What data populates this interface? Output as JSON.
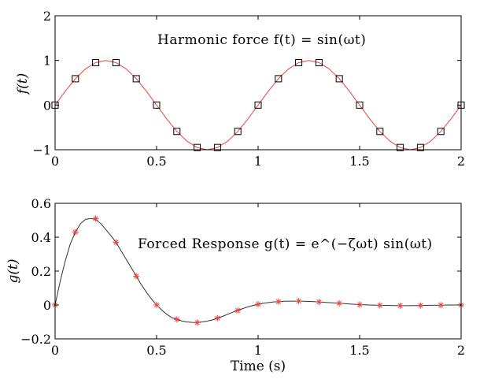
{
  "chart_data": [
    {
      "type": "line",
      "annotation": "Harmonic force f(t) = sin(ωt)",
      "ylabel": "f(t)",
      "xlabel": "",
      "xlim": [
        0,
        2
      ],
      "ylim": [
        -1,
        2
      ],
      "xticks": [
        0,
        0.5,
        1,
        1.5,
        2
      ],
      "xtick_labels": [
        "0",
        "0.5",
        "1",
        "1.5",
        "2"
      ],
      "yticks": [
        -1,
        0,
        1,
        2
      ],
      "ytick_labels": [
        "−1",
        "0",
        "1",
        "2"
      ],
      "grid": false,
      "series": [
        {
          "style": "line",
          "color": "#e8453c",
          "x": [
            0,
            0.05,
            0.1,
            0.15,
            0.2,
            0.25,
            0.3,
            0.35,
            0.4,
            0.45,
            0.5,
            0.55,
            0.6,
            0.65,
            0.7,
            0.75,
            0.8,
            0.85,
            0.9,
            0.95,
            1.0,
            1.05,
            1.1,
            1.15,
            1.2,
            1.25,
            1.3,
            1.35,
            1.4,
            1.45,
            1.5,
            1.55,
            1.6,
            1.65,
            1.7,
            1.75,
            1.8,
            1.85,
            1.9,
            1.95,
            2.0
          ],
          "y": [
            0,
            0.31,
            0.59,
            0.81,
            0.95,
            1.0,
            0.95,
            0.81,
            0.59,
            0.31,
            0,
            -0.31,
            -0.59,
            -0.81,
            -0.95,
            -1.0,
            -0.95,
            -0.81,
            -0.59,
            -0.31,
            0,
            0.31,
            0.59,
            0.81,
            0.95,
            1.0,
            0.95,
            0.81,
            0.59,
            0.31,
            0,
            -0.31,
            -0.59,
            -0.81,
            -0.95,
            -1.0,
            -0.95,
            -0.81,
            -0.59,
            -0.31,
            0
          ]
        },
        {
          "style": "markers",
          "marker": "square",
          "color": "#000000",
          "x": [
            0,
            0.1,
            0.2,
            0.3,
            0.4,
            0.5,
            0.6,
            0.7,
            0.8,
            0.9,
            1.0,
            1.1,
            1.2,
            1.3,
            1.4,
            1.5,
            1.6,
            1.7,
            1.8,
            1.9,
            2.0
          ],
          "y": [
            0,
            0.59,
            0.95,
            0.95,
            0.59,
            0,
            -0.59,
            -0.95,
            -0.95,
            -0.59,
            0,
            0.59,
            0.95,
            0.95,
            0.59,
            0,
            -0.59,
            -0.95,
            -0.95,
            -0.59,
            0
          ]
        }
      ]
    },
    {
      "type": "line",
      "annotation": "Forced Response g(t) = e^(−ζωt) sin(ωt)",
      "ylabel": "g(t)",
      "xlabel": "Time (s)",
      "xlim": [
        0,
        2
      ],
      "ylim": [
        -0.2,
        0.6
      ],
      "xticks": [
        0,
        0.5,
        1,
        1.5,
        2
      ],
      "xtick_labels": [
        "0",
        "0.5",
        "1",
        "1.5",
        "2"
      ],
      "yticks": [
        -0.2,
        0,
        0.2,
        0.4,
        0.6
      ],
      "ytick_labels": [
        "−0.2",
        "0",
        "0.2",
        "0.4",
        "0.6"
      ],
      "grid": false,
      "series": [
        {
          "style": "line",
          "color": "#333333",
          "x": [
            0,
            0.025,
            0.05,
            0.075,
            0.1,
            0.125,
            0.15,
            0.175,
            0.2,
            0.225,
            0.25,
            0.275,
            0.3,
            0.325,
            0.35,
            0.375,
            0.4,
            0.425,
            0.45,
            0.475,
            0.5,
            0.525,
            0.55,
            0.575,
            0.6,
            0.625,
            0.65,
            0.675,
            0.7,
            0.725,
            0.75,
            0.775,
            0.8,
            0.825,
            0.85,
            0.875,
            0.9,
            0.925,
            0.95,
            0.975,
            1.0,
            1.025,
            1.05,
            1.075,
            1.1,
            1.125,
            1.15,
            1.175,
            1.2,
            1.225,
            1.25,
            1.275,
            1.3,
            1.325,
            1.35,
            1.375,
            1.4,
            1.425,
            1.45,
            1.475,
            1.5,
            1.55,
            1.6,
            1.65,
            1.7,
            1.75,
            1.8,
            1.85,
            1.9,
            1.95,
            2.0
          ],
          "y": [
            0,
            0.14,
            0.26,
            0.36,
            0.43,
            0.48,
            0.505,
            0.51,
            0.505,
            0.48,
            0.445,
            0.41,
            0.37,
            0.32,
            0.27,
            0.22,
            0.17,
            0.12,
            0.075,
            0.035,
            0.0,
            -0.03,
            -0.055,
            -0.075,
            -0.085,
            -0.095,
            -0.1,
            -0.103,
            -0.104,
            -0.1,
            -0.095,
            -0.088,
            -0.078,
            -0.067,
            -0.055,
            -0.043,
            -0.032,
            -0.021,
            -0.011,
            -0.003,
            0.004,
            0.01,
            0.014,
            0.018,
            0.02,
            0.022,
            0.023,
            0.023,
            0.023,
            0.022,
            0.021,
            0.02,
            0.018,
            0.016,
            0.014,
            0.012,
            0.01,
            0.008,
            0.006,
            0.004,
            0.002,
            0.0,
            -0.002,
            -0.003,
            -0.004,
            -0.004,
            -0.003,
            -0.002,
            -0.001,
            0.0,
            0.0
          ]
        },
        {
          "style": "markers",
          "marker": "asterisk",
          "color": "#e8453c",
          "x": [
            0,
            0.1,
            0.2,
            0.3,
            0.4,
            0.5,
            0.6,
            0.7,
            0.8,
            0.9,
            1.0,
            1.1,
            1.2,
            1.3,
            1.4,
            1.5,
            1.6,
            1.7,
            1.8,
            1.9,
            2.0
          ],
          "y": [
            0,
            0.43,
            0.51,
            0.37,
            0.17,
            0,
            -0.085,
            -0.104,
            -0.078,
            -0.032,
            0.004,
            0.02,
            0.023,
            0.018,
            0.01,
            0.002,
            -0.002,
            -0.004,
            -0.003,
            -0.001,
            0
          ]
        }
      ]
    }
  ]
}
